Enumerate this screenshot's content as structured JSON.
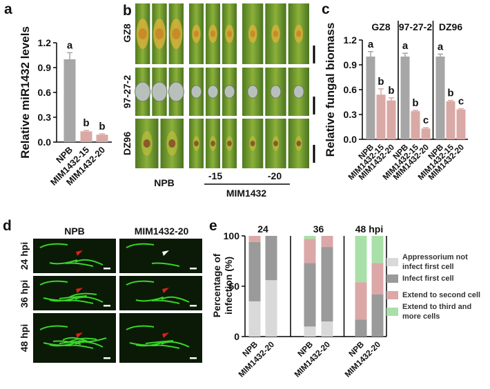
{
  "chart_data": [
    {
      "type": "bar",
      "panel_label": "a",
      "ylabel": "Relative miR1432 levels",
      "categories": [
        "NPB",
        "MIM1432-15",
        "MIM1432-20"
      ],
      "values": [
        1.0,
        0.13,
        0.09
      ],
      "errors": [
        0.08,
        0.01,
        0.01
      ],
      "letters": [
        "a",
        "b",
        "b"
      ],
      "colors": [
        "#a6a6a6",
        "#d9a9a6",
        "#d9a9a6"
      ],
      "ylim": [
        0,
        1.2
      ],
      "yticks": [
        {
          "value": 0,
          "label": "0.0"
        },
        0.3,
        0.6,
        0.9,
        1.2
      ]
    },
    {
      "type": "bar",
      "panel_label": "c",
      "ylabel": "Relative fungal biomass",
      "groups": [
        "GZ8",
        "97-27-2",
        "DZ96"
      ],
      "categories": [
        "NPB",
        "MIM1432-15",
        "MIM1432-20",
        "NPB",
        "MIM1432-15",
        "MIM1432-20",
        "NPB",
        "MIM1432-15",
        "MIM1432-20"
      ],
      "values": [
        1.0,
        0.54,
        0.47,
        1.0,
        0.34,
        0.13,
        1.0,
        0.46,
        0.36
      ],
      "errors": [
        0.06,
        0.07,
        0.03,
        0.04,
        0.01,
        0.01,
        0.03,
        0.01,
        0.01
      ],
      "letters": [
        "a",
        "b",
        "b",
        "a",
        "b",
        "c",
        "a",
        "b",
        "c"
      ],
      "colors": [
        "#a6a6a6",
        "#d9a9a6",
        "#d9a9a6",
        "#a6a6a6",
        "#d9a9a6",
        "#d9a9a6",
        "#a6a6a6",
        "#d9a9a6",
        "#d9a9a6"
      ],
      "ylim": [
        0,
        1.2
      ],
      "yticks": [
        {
          "value": 0,
          "label": "0.0"
        },
        0.3,
        0.6,
        0.9,
        1.2
      ]
    },
    {
      "type": "stacked_bar",
      "panel_label": "e",
      "ylabel": "Percentage of infection (%)",
      "groups": [
        "24",
        "36",
        "48 hpi"
      ],
      "categories": [
        "NPB",
        "MIM1432-20",
        "NPB",
        "MIM1432-20",
        "NPB",
        "MIM1432-20"
      ],
      "series": [
        {
          "name": "Appressorium not infect first cell",
          "color": "#d9d9d9",
          "values": [
            35,
            56,
            10,
            15,
            0,
            0
          ]
        },
        {
          "name": "Infect first cell",
          "color": "#9a9a9a",
          "values": [
            59,
            44,
            63,
            74,
            17,
            42
          ]
        },
        {
          "name": "Extend to second cell",
          "color": "#dba7a7",
          "values": [
            6,
            0,
            24,
            11,
            37,
            31
          ]
        },
        {
          "name": "Extend to third and more cells",
          "color": "#a9e0a9",
          "values": [
            0,
            0,
            3,
            0,
            46,
            27
          ]
        }
      ],
      "ylim": [
        0,
        100
      ],
      "yticks": [
        0,
        50,
        100
      ]
    }
  ],
  "photo_panel_b": {
    "label": "b",
    "rows": [
      "GZ8",
      "97-27-2",
      "DZ96"
    ],
    "columns": [
      "NPB",
      "-15",
      "-20"
    ],
    "group_label": "MIM1432"
  },
  "photo_panel_d": {
    "label": "d",
    "columns": [
      "NPB",
      "MIM1432-20"
    ],
    "rows": [
      "24 hpi",
      "36 hpi",
      "48 hpi"
    ]
  }
}
